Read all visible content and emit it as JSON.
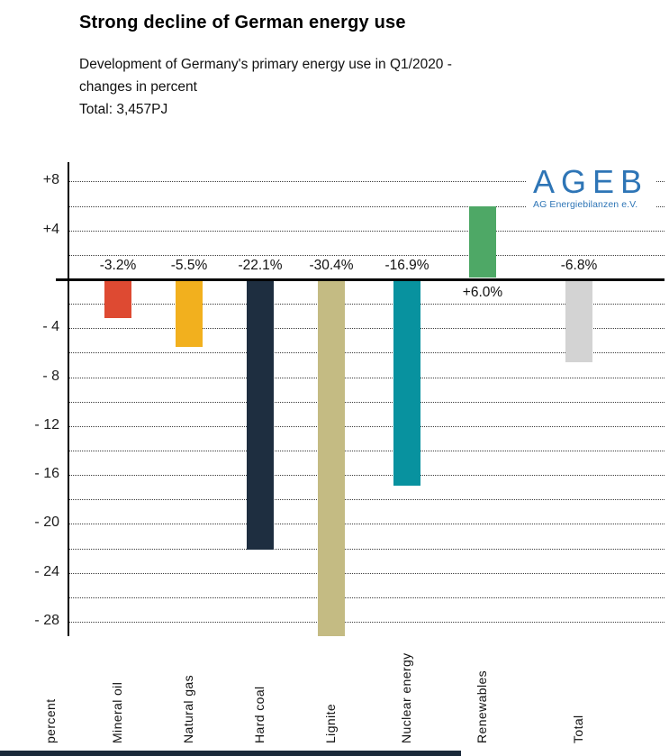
{
  "header": {
    "title": "Strong decline of German energy use",
    "subtitle": "Development of Germany's primary energy use in Q1/2020 -\nchanges in percent",
    "total": "Total: 3,457PJ"
  },
  "logo": {
    "name": "AGEB",
    "subtext": "AG Energiebilanzen e.V.",
    "color": "#2e75b6"
  },
  "page": {
    "bottom_strip_color": "#1b2a3a"
  },
  "chart_data": {
    "type": "bar",
    "title": "Strong decline of German energy use",
    "subtitle": "Development of Germany's primary energy use in Q1/2020 - changes in percent",
    "total_label": "Total: 3,457PJ",
    "ylabel": "percent",
    "ylim": [
      -29,
      9
    ],
    "grid": "horizontal dotted gridlines every 2 percent, thick solid zero baseline",
    "legend_position": "none",
    "categories": [
      "Mineral oil",
      "Natural gas",
      "Hard coal",
      "Lignite",
      "Nuclear energy",
      "Renewables",
      "Total"
    ],
    "values": [
      -3.2,
      -5.5,
      -22.1,
      -30.4,
      -16.9,
      6.0,
      -6.8
    ],
    "bar_labels": [
      "-3.2%",
      "-5.5%",
      "-22.1%",
      "-30.4%",
      "-16.9%",
      "+6.0%",
      "-6.8%"
    ],
    "bar_colors": [
      "#de4a32",
      "#f2b01e",
      "#1e2e40",
      "#c4bb83",
      "#08929f",
      "#4ea866",
      "#d3d3d3"
    ],
    "yticks": [
      {
        "value": 8,
        "label": "+8"
      },
      {
        "value": 4,
        "label": "+4"
      },
      {
        "value": -4,
        "label": "- 4"
      },
      {
        "value": -8,
        "label": "- 8"
      },
      {
        "value": -12,
        "label": "- 12"
      },
      {
        "value": -16,
        "label": "- 16"
      },
      {
        "value": -20,
        "label": "- 20"
      },
      {
        "value": -24,
        "label": "- 24"
      },
      {
        "value": -28,
        "label": "- 28"
      }
    ]
  }
}
